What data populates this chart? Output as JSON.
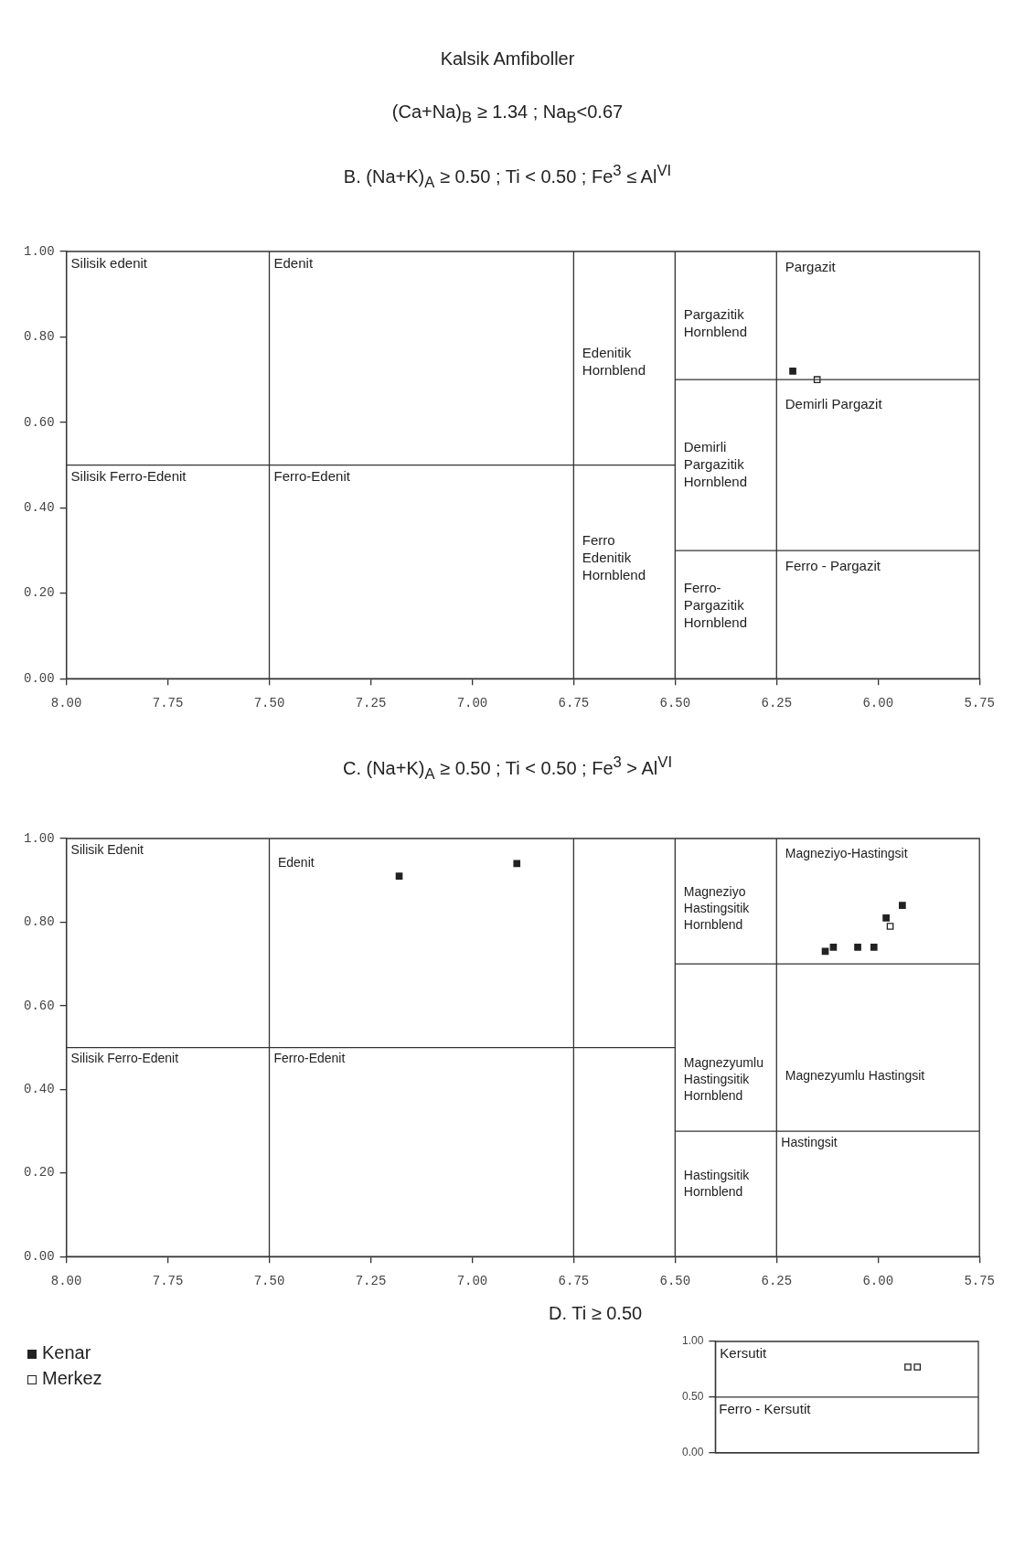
{
  "chart_data": [
    {
      "type": "scatter",
      "title": "B. (Na+K)$_{A}$ ≥ 0.50 ;  Ti < 0.50 ; Fe$^{3}$ ≤ Al$^{VI}$",
      "xlim": [
        8.0,
        5.75
      ],
      "ylim": [
        0,
        1
      ],
      "marker": "square",
      "xticks": [
        {
          "value": 8,
          "label": "8.00"
        },
        {
          "value": 7.75,
          "label": "7.75"
        },
        {
          "value": 7.5,
          "label": "7.50"
        },
        {
          "value": 7.25,
          "label": "7.25"
        },
        {
          "value": 7,
          "label": "7.00"
        },
        {
          "value": 6.75,
          "label": "6.75"
        },
        {
          "value": 6.5,
          "label": "6.50"
        },
        {
          "value": 6.25,
          "label": "6.25"
        },
        {
          "value": 6,
          "label": "6.00"
        },
        {
          "value": 5.75,
          "label": "5.75"
        }
      ],
      "yticks": [
        {
          "value": 0,
          "label": "0.00"
        },
        {
          "value": 0.2,
          "label": "0.20"
        },
        {
          "value": 0.4,
          "label": "0.40"
        },
        {
          "value": 0.6,
          "label": "0.60"
        },
        {
          "value": 0.8,
          "label": "0.80"
        },
        {
          "value": 1,
          "label": "1.00"
        }
      ],
      "ref_lines": [
        {
          "axis": "x",
          "value": 7.5,
          "color": "#333333"
        },
        {
          "axis": "x",
          "value": 6.75,
          "color": "#333333"
        },
        {
          "axis": "x",
          "value": 6.5,
          "color": "#333333"
        },
        {
          "axis": "x",
          "value": 6.25,
          "color": "#333333"
        }
      ],
      "series": [
        {
          "type": "line",
          "color": "#333333",
          "marker": "none",
          "x": [
            8.0,
            6.5
          ],
          "values": [
            0.5,
            0.5
          ]
        },
        {
          "type": "line",
          "color": "#333333",
          "marker": "none",
          "x": [
            6.5,
            5.75
          ],
          "values": [
            0.7,
            0.7
          ]
        },
        {
          "type": "line",
          "color": "#333333",
          "marker": "none",
          "x": [
            6.5,
            5.75
          ],
          "values": [
            0.3,
            0.3
          ]
        },
        {
          "color": "#222222",
          "x": [
            6.21
          ],
          "values": [
            0.72
          ]
        },
        {
          "color": "#ffffff",
          "x": [
            6.15
          ],
          "values": [
            0.7
          ]
        }
      ],
      "annotations": [
        "Kalsik Amfiboller",
        "(Ca+Na)$_{B}$ ≥ 1.34 ; Na$_{B}$<0.67",
        {
          "text": "Edenit",
          "x": 7.5,
          "y": 1.0
        },
        {
          "text": "Edenitik\nHornblend",
          "x": 6.74,
          "y": 0.79
        },
        {
          "text": "Silisik Ferro-Edenit",
          "x": 8.0,
          "y": 0.5
        },
        {
          "text": "Ferro-Edenit",
          "x": 7.5,
          "y": 0.5
        },
        {
          "text": "Ferro\nEdenitik\nHornblend",
          "x": 6.74,
          "y": 0.35
        },
        {
          "text": "Pargazit",
          "x": 6.24,
          "y": 0.99
        },
        {
          "text": "Pargazitik\nHornblend",
          "x": 6.49,
          "y": 0.88
        },
        {
          "text": "Demirli Pargazit",
          "x": 6.24,
          "y": 0.67
        },
        {
          "text": "Demirli\nPargazitik\nHornblend",
          "x": 6.49,
          "y": 0.57
        },
        {
          "text": "Ferro - Pargazit",
          "x": 6.24,
          "y": 0.29
        },
        {
          "text": "Ferro-\nPargazitik\nHornblend",
          "x": 6.49,
          "y": 0.24
        },
        "Silisik edenit"
      ]
    },
    {
      "type": "scatter",
      "title": "C. (Na+K)$_{A}$ ≥ 0.50 ; Ti < 0.50 ; Fe$^{3}$ > Al$^{VI}$",
      "xlim": [
        8.0,
        5.75
      ],
      "ylim": [
        0,
        1
      ],
      "marker": "square",
      "legend": "bottom left",
      "xticks": [
        {
          "value": 8,
          "label": "8.00"
        },
        {
          "value": 7.75,
          "label": "7.75"
        },
        {
          "value": 7.5,
          "label": "7.50"
        },
        {
          "value": 7.25,
          "label": "7.25"
        },
        {
          "value": 7,
          "label": "7.00"
        },
        {
          "value": 6.75,
          "label": "6.75"
        },
        {
          "value": 6.5,
          "label": "6.50"
        },
        {
          "value": 6.25,
          "label": "6.25"
        },
        {
          "value": 6,
          "label": "6.00"
        },
        {
          "value": 5.75,
          "label": "5.75"
        }
      ],
      "yticks": [
        {
          "value": 0,
          "label": "0.00"
        },
        {
          "value": 0.2,
          "label": "0.20"
        },
        {
          "value": 0.4,
          "label": "0.40"
        },
        {
          "value": 0.6,
          "label": "0.60"
        },
        {
          "value": 0.8,
          "label": "0.80"
        },
        {
          "value": 1,
          "label": "1.00"
        }
      ],
      "ref_lines": [
        {
          "axis": "x",
          "value": 7.5,
          "color": "#333333"
        },
        {
          "axis": "x",
          "value": 6.75,
          "color": "#333333"
        },
        {
          "axis": "x",
          "value": 6.5,
          "color": "#333333"
        },
        {
          "axis": "x",
          "value": 6.25,
          "color": "#333333"
        }
      ],
      "series": [
        {
          "type": "line",
          "color": "#333333",
          "marker": "none",
          "x": [
            8.0,
            6.5
          ],
          "values": [
            0.5,
            0.5
          ]
        },
        {
          "type": "line",
          "color": "#333333",
          "marker": "none",
          "x": [
            6.5,
            5.75
          ],
          "values": [
            0.7,
            0.7
          ]
        },
        {
          "type": "line",
          "color": "#333333",
          "marker": "none",
          "x": [
            6.5,
            5.75
          ],
          "values": [
            0.3,
            0.3
          ]
        },
        {
          "name": "Kenar",
          "color": "#222222",
          "x": [
            7.18,
            6.89,
            6.13,
            6.11,
            6.05,
            6.01,
            5.98,
            5.94
          ],
          "values": [
            0.91,
            0.94,
            0.73,
            0.74,
            0.74,
            0.74,
            0.81,
            0.84
          ]
        },
        {
          "name": "Merkez",
          "color": "#ffffff",
          "x": [
            5.97
          ],
          "values": [
            0.79
          ]
        }
      ],
      "annotations": [
        {
          "text": "Edenit",
          "x": 7.49,
          "y": 0.97
        },
        {
          "text": "Magneziyo-Hastingsit",
          "x": 6.24,
          "y": 0.99
        },
        {
          "text": "Magneziyo\nHastingsitik\nHornblend",
          "x": 6.49,
          "y": 0.9
        },
        {
          "text": "Magnezyumlu\nHastingsitik\nHornblend",
          "x": 6.49,
          "y": 0.49
        },
        {
          "text": "Magnezyumlu Hastingsit",
          "x": 6.24,
          "y": 0.46
        },
        {
          "text": "Silisik Ferro-Edenit",
          "x": 8.0,
          "y": 0.5
        },
        {
          "text": "Ferro-Edenit",
          "x": 7.5,
          "y": 0.5
        },
        {
          "text": "Hastingsitik\nHornblend",
          "x": 6.49,
          "y": 0.22
        },
        {
          "text": "Hastingsit",
          "x": 6.25,
          "y": 0.3
        },
        "Silisik Edenit"
      ]
    },
    {
      "type": "scatter",
      "title": "D. Ti ≥ 0.50",
      "ylim": [
        0,
        1
      ],
      "marker": "square",
      "tick_labels": "y",
      "categories": [
        null,
        null,
        null,
        null,
        null,
        null,
        null,
        null,
        null,
        null,
        null,
        null,
        null,
        null,
        null,
        null,
        null,
        null,
        null,
        null,
        null,
        null,
        null,
        null,
        null,
        null,
        null,
        null
      ],
      "yticks": [
        {
          "value": 0,
          "label": "0.00"
        },
        {
          "value": 0.5,
          "label": "0.50"
        },
        {
          "value": 1,
          "label": "1.00"
        }
      ],
      "ref_lines": [
        {
          "axis": "y",
          "value": 0.5,
          "color": "#333333"
        }
      ],
      "series": [
        {
          "color": "#ffffff",
          "values": [
            null,
            null,
            null,
            null,
            null,
            null,
            null,
            null,
            null,
            null,
            null,
            null,
            null,
            null,
            null,
            null,
            null,
            null,
            null,
            null,
            0.77,
            0.77,
            null,
            null,
            null,
            null,
            null,
            null
          ]
        }
      ],
      "annotations": [
        {
          "text": "Ferro - Kersutit",
          "y": 0.5
        },
        "Kersutit"
      ]
    }
  ]
}
